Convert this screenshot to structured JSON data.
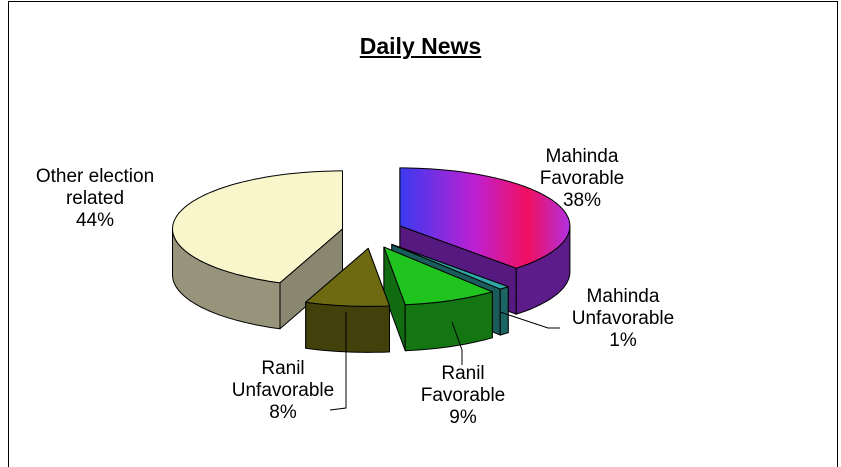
{
  "chart_data": {
    "type": "pie",
    "title": "Daily News",
    "categories": [
      "Mahinda Favorable",
      "Mahinda Unfavorable",
      "Ranil Favorable",
      "Ranil Unfavorable",
      "Other election related"
    ],
    "values": [
      38,
      1,
      9,
      8,
      44
    ],
    "value_labels": [
      "38%",
      "1%",
      "9%",
      "8%",
      "44%"
    ],
    "colors": [
      "#9a2ee6",
      "#2fa8a8",
      "#1fc41f",
      "#6e6a12",
      "#faf6cc"
    ]
  }
}
